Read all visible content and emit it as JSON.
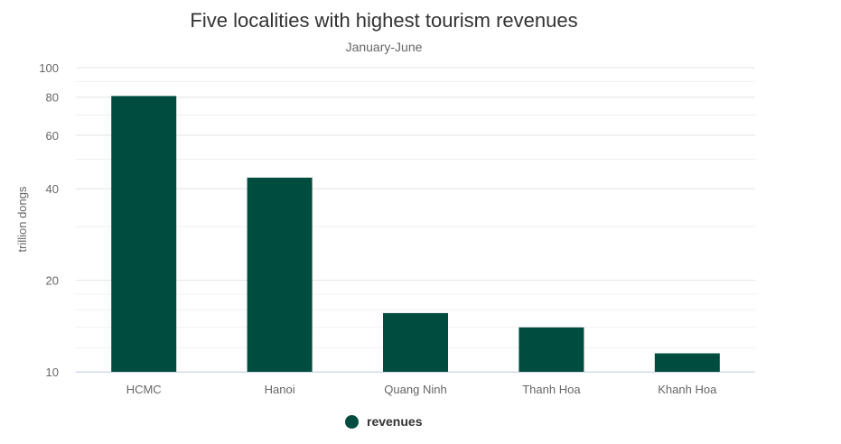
{
  "chart_data": {
    "type": "bar",
    "title": "Five localities with highest tourism revenues",
    "subtitle": "January-June",
    "ylabel": "trillion dongs",
    "y_scale": "log",
    "ylim": [
      10,
      100
    ],
    "y_ticks": [
      10,
      20,
      40,
      60,
      80,
      100
    ],
    "grid": true,
    "categories": [
      "HCMC",
      "Hanoi",
      "Quang Ninh",
      "Thanh Hoa",
      "Khanh Hoa"
    ],
    "series": [
      {
        "name": "revenues",
        "values": [
          80.7,
          43.5,
          15.6,
          14.0,
          11.5
        ]
      }
    ],
    "legend_position": "bottom-center",
    "colors": {
      "bar": "#004c3f",
      "grid": "#e6e6e6",
      "axis": "#ccd6eb"
    }
  }
}
